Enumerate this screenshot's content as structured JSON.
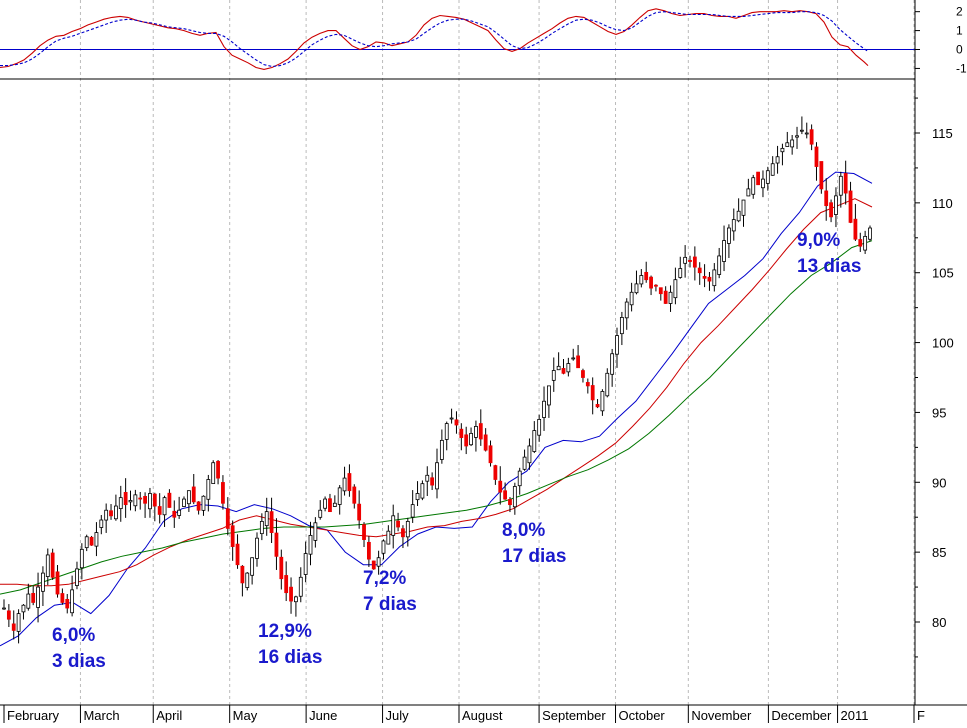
{
  "chart_data": [
    {
      "type": "line",
      "panel": "oscillator",
      "yticks": [
        2,
        1,
        0,
        -1
      ],
      "ylim": [
        -1.4,
        2.3
      ],
      "reference_line": 0,
      "x": [
        0,
        8,
        16,
        24,
        32,
        40,
        48,
        56,
        64,
        72,
        80,
        88,
        96,
        104,
        112,
        120,
        128,
        136,
        144,
        152,
        160,
        168,
        176,
        184,
        192,
        200,
        208,
        216,
        224,
        232,
        240,
        248,
        256,
        264,
        272,
        280,
        288,
        296,
        304,
        312,
        320,
        328,
        336,
        344,
        352,
        360,
        368,
        376,
        384,
        392,
        400,
        408,
        416,
        424,
        432,
        440,
        448,
        456,
        464,
        472,
        480,
        488,
        496,
        504,
        512,
        520,
        528,
        536,
        544,
        552,
        560,
        568,
        576,
        584,
        592,
        600,
        608,
        616,
        624,
        632,
        640,
        648,
        656,
        664,
        672,
        680,
        688,
        696,
        704,
        712,
        720,
        728,
        736,
        744,
        752,
        760,
        768,
        776,
        784,
        792,
        800,
        808,
        816,
        824,
        832,
        840,
        848,
        856,
        864,
        868
      ],
      "series": [
        {
          "color": "#cc0000",
          "style": "solid",
          "values": [
            -0.95,
            -0.9,
            -0.75,
            -0.55,
            -0.2,
            0.2,
            0.5,
            0.7,
            0.75,
            0.95,
            1.1,
            1.3,
            1.45,
            1.6,
            1.7,
            1.75,
            1.7,
            1.55,
            1.45,
            1.35,
            1.25,
            1.15,
            1.1,
            1.0,
            0.85,
            0.75,
            0.85,
            0.9,
            0.15,
            -0.3,
            -0.5,
            -0.7,
            -0.95,
            -1.05,
            -0.95,
            -0.75,
            -0.5,
            -0.1,
            0.35,
            0.65,
            0.85,
            1.0,
            1.0,
            0.6,
            0.2,
            0.0,
            0.15,
            0.4,
            0.35,
            0.2,
            0.3,
            0.4,
            0.75,
            1.3,
            1.65,
            1.8,
            1.75,
            1.7,
            1.6,
            1.4,
            1.2,
            1.0,
            0.5,
            0.05,
            -0.1,
            0.05,
            0.35,
            0.6,
            0.85,
            1.1,
            1.4,
            1.65,
            1.75,
            1.7,
            1.45,
            1.2,
            0.95,
            0.8,
            0.95,
            1.3,
            1.7,
            2.05,
            2.15,
            2.05,
            1.9,
            1.8,
            1.85,
            1.9,
            1.9,
            1.8,
            1.75,
            1.75,
            1.65,
            1.8,
            1.95,
            2.0,
            2.0,
            2.0,
            2.05,
            2.0,
            2.05,
            2.0,
            1.9,
            1.45,
            0.65,
            0.25,
            0.15,
            -0.3,
            -0.65,
            -0.85
          ]
        },
        {
          "color": "#0000cc",
          "style": "dashed",
          "values": [
            -0.85,
            -0.85,
            -0.8,
            -0.7,
            -0.5,
            -0.2,
            0.15,
            0.45,
            0.6,
            0.7,
            0.85,
            1.0,
            1.15,
            1.3,
            1.45,
            1.55,
            1.6,
            1.55,
            1.45,
            1.4,
            1.3,
            1.2,
            1.15,
            1.1,
            1.0,
            0.9,
            0.85,
            0.85,
            0.7,
            0.4,
            0.05,
            -0.25,
            -0.55,
            -0.8,
            -0.9,
            -0.85,
            -0.7,
            -0.45,
            -0.1,
            0.25,
            0.5,
            0.7,
            0.8,
            0.75,
            0.55,
            0.35,
            0.2,
            0.15,
            0.2,
            0.3,
            0.35,
            0.4,
            0.55,
            0.85,
            1.15,
            1.4,
            1.55,
            1.6,
            1.6,
            1.5,
            1.35,
            1.2,
            0.9,
            0.55,
            0.2,
            0.05,
            0.1,
            0.3,
            0.55,
            0.85,
            1.1,
            1.35,
            1.55,
            1.6,
            1.55,
            1.4,
            1.2,
            1.05,
            1.0,
            1.15,
            1.45,
            1.75,
            1.95,
            2.0,
            1.95,
            1.9,
            1.85,
            1.85,
            1.85,
            1.85,
            1.8,
            1.75,
            1.75,
            1.75,
            1.8,
            1.85,
            1.9,
            1.95,
            1.95,
            1.95,
            2.0,
            2.0,
            1.95,
            1.8,
            1.5,
            1.05,
            0.7,
            0.35,
            0.05,
            -0.1
          ]
        }
      ]
    },
    {
      "type": "candlestick",
      "panel": "price",
      "ylim": [
        76.5,
        118.5
      ],
      "yticks": [
        80,
        85,
        90,
        95,
        100,
        105,
        110,
        115
      ],
      "xticks": [
        "February",
        "March",
        "April",
        "May",
        "June",
        "July",
        "August",
        "September",
        "October",
        "November",
        "December",
        "2011",
        "F"
      ],
      "xtick_positions": [
        0,
        21,
        41,
        62,
        83,
        104,
        125,
        147,
        168,
        188,
        210,
        229,
        250
      ],
      "candle_gap": 3.8,
      "x_start": 4,
      "closes": [
        81.0,
        80.2,
        79.4,
        80.6,
        81.2,
        82.0,
        81.4,
        82.5,
        83.5,
        84.8,
        83.2,
        82.0,
        81.4,
        81.0,
        82.3,
        83.8,
        85.2,
        86.1,
        85.5,
        86.4,
        87.3,
        88.0,
        87.6,
        88.3,
        88.9,
        88.4,
        88.7,
        89.1,
        88.8,
        88.5,
        89.2,
        88.3,
        87.7,
        88.9,
        88.2,
        87.5,
        88.0,
        88.8,
        89.4,
        88.6,
        88.0,
        89.0,
        90.2,
        91.4,
        90.3,
        88.5,
        86.7,
        85.4,
        84.1,
        82.8,
        83.5,
        84.6,
        86.0,
        87.2,
        87.9,
        86.4,
        84.7,
        83.1,
        82.1,
        81.5,
        81.8,
        83.2,
        84.9,
        86.2,
        87.1,
        88.0,
        88.8,
        87.9,
        88.5,
        89.6,
        90.3,
        89.4,
        88.5,
        87.3,
        85.9,
        84.5,
        83.8,
        84.6,
        85.8,
        86.5,
        87.6,
        86.8,
        86.1,
        87.2,
        88.4,
        89.2,
        89.9,
        90.5,
        89.8,
        91.4,
        93.0,
        94.2,
        94.6,
        94.1,
        93.2,
        92.6,
        93.5,
        94.0,
        93.1,
        92.3,
        91.4,
        90.2,
        89.3,
        88.8,
        88.4,
        89.7,
        90.8,
        91.8,
        92.6,
        93.7,
        94.5,
        95.8,
        96.9,
        98.0,
        98.3,
        97.8,
        98.5,
        98.9,
        98.2,
        97.5,
        96.9,
        95.9,
        95.4,
        96.5,
        97.8,
        99.2,
        100.5,
        101.8,
        102.9,
        103.6,
        104.2,
        104.8,
        104.5,
        103.9,
        104.1,
        103.5,
        102.8,
        103.6,
        104.5,
        105.3,
        106.1,
        105.8,
        105.4,
        105.0,
        104.6,
        104.4,
        105.2,
        106.2,
        107.3,
        108.2,
        108.8,
        109.4,
        110.2,
        111.0,
        111.8,
        111.3,
        111.7,
        112.3,
        112.8,
        113.3,
        113.9,
        114.3,
        114.5,
        114.8,
        115.2,
        115.0,
        114.2,
        112.6,
        111.0,
        109.8,
        109.0,
        110.5,
        111.9,
        110.7,
        108.6,
        107.4,
        106.9,
        107.6,
        108.2
      ],
      "moving_averages": [
        {
          "color": "#0000cc",
          "values": [
            78.3,
            79.0,
            80.3,
            81.2,
            81.4,
            80.6,
            81.9,
            83.8,
            85.3,
            87.2,
            88.1,
            88.4,
            88.3,
            87.9,
            88.4,
            88.1,
            87.6,
            86.9,
            86.6,
            85.0,
            84.1,
            84.1,
            85.4,
            86.3,
            86.8,
            86.7,
            86.8,
            88.6,
            90.0,
            90.8,
            92.5,
            93.0,
            92.9,
            93.3,
            94.6,
            95.8,
            97.5,
            99.2,
            101.0,
            102.8,
            103.8,
            104.8,
            106.0,
            107.8,
            109.3,
            111.2,
            112.2,
            112.1,
            111.4
          ]
        },
        {
          "color": "#cc0000",
          "values": [
            82.7,
            82.7,
            82.6,
            82.6,
            82.7,
            83.0,
            83.3,
            83.6,
            84.1,
            84.8,
            85.4,
            85.9,
            86.3,
            86.7,
            87.3,
            87.6,
            87.3,
            87.0,
            86.8,
            86.6,
            86.4,
            86.2,
            86.1,
            86.3,
            86.5,
            86.8,
            86.9,
            87.2,
            87.4,
            87.7,
            88.1,
            88.8,
            89.5,
            90.3,
            91.1,
            91.9,
            92.8,
            94.0,
            95.3,
            96.8,
            98.5,
            100.0,
            101.2,
            102.5,
            103.8,
            105.2,
            106.7,
            108.1,
            109.3,
            109.8,
            110.3,
            109.7
          ]
        },
        {
          "color": "#007700",
          "values": [
            82.0,
            82.3,
            82.8,
            83.3,
            83.8,
            84.3,
            84.7,
            85.0,
            85.3,
            85.7,
            86.0,
            86.3,
            86.5,
            86.7,
            86.8,
            86.8,
            86.8,
            86.9,
            87.0,
            87.2,
            87.4,
            87.6,
            87.8,
            88.0,
            88.3,
            88.7,
            89.2,
            89.8,
            90.4,
            90.9,
            91.6,
            92.4,
            93.5,
            94.8,
            96.2,
            97.5,
            99.0,
            100.5,
            102.0,
            103.5,
            104.8,
            105.7,
            106.8,
            107.3
          ]
        }
      ]
    }
  ],
  "annotations": [
    {
      "pct": "6,0%",
      "days": "3 dias"
    },
    {
      "pct": "12,9%",
      "days": "16 dias"
    },
    {
      "pct": "7,2%",
      "days": "7 dias"
    },
    {
      "pct": "8,0%",
      "days": "17 dias"
    },
    {
      "pct": "9,0%",
      "days": "13 dias"
    }
  ],
  "annotation_color": "#1a1acc",
  "up_candle_color": "#ffffff",
  "down_candle_color": "#ee0000"
}
